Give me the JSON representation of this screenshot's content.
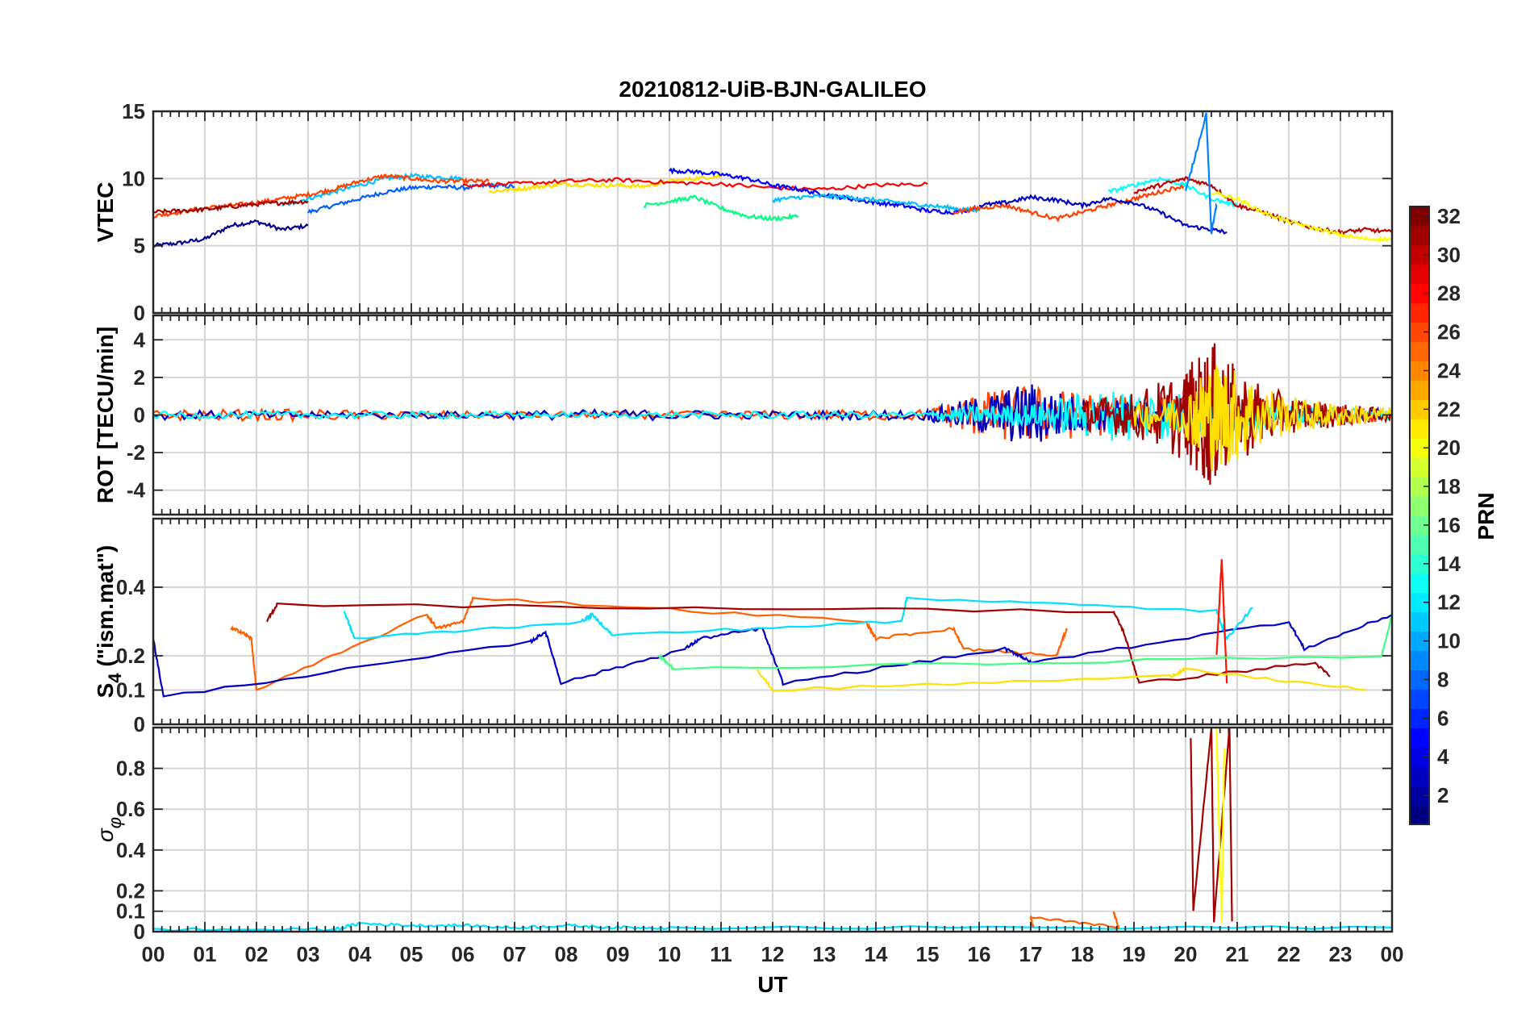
{
  "chart_data": {
    "type": "line",
    "title": "20210812-UiB-BJN-GALILEO",
    "xlabel": "UT",
    "x_ticks": [
      "00",
      "01",
      "02",
      "03",
      "04",
      "05",
      "06",
      "07",
      "08",
      "09",
      "10",
      "11",
      "12",
      "13",
      "14",
      "15",
      "16",
      "17",
      "18",
      "19",
      "20",
      "21",
      "22",
      "23",
      "00"
    ],
    "xlim_hours": [
      0,
      24
    ],
    "grid": true,
    "panels": [
      {
        "ylabel": "VTEC",
        "ylim": [
          0,
          15
        ],
        "yticks": [
          "0",
          "5",
          "10",
          "15"
        ],
        "series": [
          {
            "color": "#00008f",
            "x": [
              0,
              0.5,
              1,
              1.5,
              2,
              2.5,
              3
            ],
            "y": [
              5,
              5.2,
              5.5,
              6.5,
              6.8,
              6.2,
              6.5
            ]
          },
          {
            "color": "#0060ff",
            "x": [
              3,
              3.5,
              4,
              4.5,
              5,
              5.5,
              6,
              6.5,
              7
            ],
            "y": [
              7.5,
              8,
              8.5,
              9,
              9.3,
              9.4,
              9.3,
              9.5,
              9.4
            ]
          },
          {
            "color": "#00c0ff",
            "x": [
              2.5,
              3,
              3.5,
              4,
              4.5,
              5,
              5.5,
              6
            ],
            "y": [
              8,
              8.5,
              9,
              9.5,
              10,
              10.2,
              10.1,
              10
            ]
          },
          {
            "color": "#ff4000",
            "x": [
              0,
              0.5,
              1,
              1.5,
              2,
              2.5,
              3,
              3.5,
              4,
              4.5,
              5,
              5.5,
              6,
              6.5
            ],
            "y": [
              7.2,
              7.5,
              7.8,
              8,
              8.2,
              8.5,
              8.8,
              9.2,
              9.8,
              10.2,
              10,
              9.8,
              9.8,
              9.8
            ]
          },
          {
            "color": "#a00000",
            "x": [
              0,
              0.5,
              1,
              1.5,
              2,
              2.5,
              3
            ],
            "y": [
              7.5,
              7.6,
              7.7,
              7.9,
              8.1,
              8.2,
              8.3
            ]
          },
          {
            "color": "#ffe000",
            "x": [
              6.5,
              7,
              7.5,
              8,
              8.5,
              9,
              9.5,
              10,
              10.5,
              11
            ],
            "y": [
              9,
              9.2,
              9.4,
              9.6,
              9.5,
              9.5,
              9.4,
              9.8,
              10,
              10.2
            ]
          },
          {
            "color": "#ff0000",
            "x": [
              6,
              7,
              8,
              9,
              10,
              11,
              12,
              13,
              14,
              15
            ],
            "y": [
              9.5,
              9.6,
              9.8,
              9.9,
              9.7,
              9.6,
              9.3,
              9.2,
              9.5,
              9.6
            ]
          },
          {
            "color": "#0000ff",
            "x": [
              10,
              10.5,
              11,
              11.5,
              12,
              12.5,
              13,
              13.5,
              14,
              14.5,
              15,
              15.5,
              16
            ],
            "y": [
              10.6,
              10.5,
              10.3,
              10,
              9.5,
              9.2,
              8.8,
              8.5,
              8.2,
              8,
              7.6,
              7.5,
              7.8
            ]
          },
          {
            "color": "#00ff80",
            "x": [
              9.5,
              10,
              10.5,
              11,
              11.5,
              12,
              12.5
            ],
            "y": [
              8,
              8.3,
              8.6,
              7.8,
              7.2,
              7,
              7.2
            ]
          },
          {
            "color": "#00c0ff",
            "x": [
              12,
              12.5,
              13,
              13.5,
              14,
              14.5,
              15,
              15.5,
              16
            ],
            "y": [
              8.4,
              8.6,
              8.7,
              8.6,
              8.4,
              8.2,
              8,
              7.8,
              7.6
            ]
          },
          {
            "color": "#ff4000",
            "x": [
              15.5,
              16,
              16.5,
              17,
              17.5,
              18,
              18.5,
              19,
              19.5,
              20
            ],
            "y": [
              7.5,
              7.8,
              8,
              7.5,
              7,
              7.5,
              8,
              8.5,
              9,
              9.5
            ]
          },
          {
            "color": "#0000c0",
            "x": [
              16,
              16.5,
              17,
              17.5,
              18,
              18.5,
              19,
              19.5,
              20,
              20.5,
              20.8
            ],
            "y": [
              8,
              8.2,
              8.6,
              8.4,
              8,
              8.5,
              8.2,
              7.5,
              6.5,
              6.2,
              6
            ]
          },
          {
            "color": "#00ffff",
            "x": [
              18.5,
              19,
              19.5,
              20,
              20.5,
              21
            ],
            "y": [
              9,
              9.5,
              10,
              9.5,
              8.5,
              8
            ]
          },
          {
            "color": "#c00000",
            "x": [
              19,
              19.5,
              20,
              20.5,
              21,
              21.5,
              22,
              22.5,
              23,
              23.5,
              24
            ],
            "y": [
              9,
              9.5,
              10,
              9.5,
              8,
              7.5,
              6.8,
              6.3,
              6,
              6.2,
              6
            ]
          },
          {
            "color": "#ffff00",
            "x": [
              20.5,
              21,
              21.5,
              22,
              22.5,
              23,
              23.5,
              24
            ],
            "y": [
              9,
              8.5,
              7.5,
              6.8,
              6.3,
              5.8,
              5.5,
              5.5
            ]
          },
          {
            "color": "#0080ff",
            "x": [
              20,
              20.4,
              20.5,
              20.6
            ],
            "y": [
              9,
              14.8,
              6,
              8
            ]
          }
        ]
      },
      {
        "ylabel": "ROT [TECU/min]",
        "ylim": [
          -5.3,
          5.3
        ],
        "yticks": [
          "-4",
          "-2",
          "0",
          "2",
          "4"
        ],
        "series": [
          {
            "color": "#ff4000",
            "x": [
              0,
              3,
              6,
              9,
              12,
              15,
              16,
              17,
              18,
              19,
              20,
              21,
              22,
              23,
              24
            ],
            "amplitude": [
              0.3,
              0.3,
              0.2,
              0.2,
              0.25,
              0.3,
              1.2,
              1.6,
              1.2,
              1,
              1,
              1,
              0.7,
              0.5,
              0.3
            ]
          },
          {
            "color": "#0000c0",
            "x": [
              0,
              3,
              6,
              9,
              12,
              15,
              16,
              17,
              18,
              19,
              20,
              21,
              22,
              23,
              24
            ],
            "amplitude": [
              0.25,
              0.2,
              0.2,
              0.3,
              0.2,
              0.3,
              1,
              1.8,
              0.9,
              0.8,
              0.6,
              0.5,
              0.4,
              0.3,
              0.3
            ]
          },
          {
            "color": "#00ffff",
            "x": [
              0,
              3,
              6,
              9,
              12,
              15,
              16,
              17,
              18,
              19,
              20,
              21,
              22,
              23,
              24
            ],
            "amplitude": [
              0.2,
              0.2,
              0.2,
              0.15,
              0.2,
              0.2,
              0.5,
              0.6,
              1.2,
              1.5,
              1.2,
              0.9,
              0.5,
              0.4,
              0.3
            ]
          },
          {
            "color": "#a00000",
            "x": [
              18,
              19,
              20,
              20.5,
              21,
              22,
              23,
              24
            ],
            "amplitude": [
              0.8,
              1.2,
              2.5,
              4,
              2.5,
              1,
              0.6,
              0.3
            ]
          },
          {
            "color": "#ffe000",
            "x": [
              19,
              20,
              20.5,
              21,
              22,
              23,
              24
            ],
            "amplitude": [
              0.6,
              1.2,
              3,
              2.5,
              1,
              0.6,
              0.4
            ]
          }
        ]
      },
      {
        "ylabel": "S4 (\"ism.mat\")",
        "ylabel_main": "S",
        "ylabel_sub": "4",
        "ylabel_rest": " (\"ism.mat\")",
        "ylim": [
          0,
          0.6
        ],
        "yticks": [
          "0",
          "0.1",
          "0.2",
          "0.4"
        ],
        "series": [
          {
            "color": "#ff6000",
            "x": [
              1.5,
              1.7,
              1.9,
              2,
              5.3,
              5.5,
              6,
              6.2,
              13.8,
              14,
              15.5,
              15.7,
              17.5,
              17.7
            ],
            "y": [
              0.28,
              0.27,
              0.25,
              0.1,
              0.32,
              0.28,
              0.3,
              0.37,
              0.3,
              0.25,
              0.28,
              0.22,
              0.2,
              0.28
            ]
          },
          {
            "color": "#0000c0",
            "x": [
              0,
              0.2,
              7.3,
              7.6,
              7.9,
              10.3,
              10.6,
              11.8,
              12.2,
              16.5,
              16.8,
              17,
              22,
              22.3,
              24
            ],
            "y": [
              0.25,
              0.08,
              0.24,
              0.27,
              0.12,
              0.22,
              0.25,
              0.28,
              0.12,
              0.22,
              0.2,
              0.18,
              0.3,
              0.22,
              0.32
            ]
          },
          {
            "color": "#00e0ff",
            "x": [
              3.7,
              3.9,
              8.3,
              8.5,
              8.9,
              14.5,
              14.6,
              20.6,
              20.8,
              21.3
            ],
            "y": [
              0.33,
              0.25,
              0.3,
              0.32,
              0.26,
              0.3,
              0.37,
              0.33,
              0.25,
              0.34
            ]
          },
          {
            "color": "#a00000",
            "x": [
              2.2,
              2.4,
              18.6,
              18.8,
              19.1,
              22.5,
              22.8
            ],
            "y": [
              0.3,
              0.35,
              0.33,
              0.27,
              0.12,
              0.18,
              0.14
            ]
          },
          {
            "color": "#ff1000",
            "x": [
              20.6,
              20.7,
              20.8
            ],
            "y": [
              0.2,
              0.48,
              0.12
            ]
          },
          {
            "color": "#ffe000",
            "x": [
              11.7,
              12,
              19.7,
              20,
              23.5
            ],
            "y": [
              0.16,
              0.1,
              0.14,
              0.16,
              0.1
            ]
          },
          {
            "color": "#40ff80",
            "x": [
              9.8,
              10.1,
              23.8,
              24
            ],
            "y": [
              0.2,
              0.16,
              0.2,
              0.32
            ]
          }
        ]
      },
      {
        "ylabel": "σ φ",
        "ylabel_main": "σ",
        "ylabel_sub": "φ",
        "ylim": [
          0,
          1
        ],
        "yticks": [
          "0",
          "0.1",
          "0.2",
          "0.4",
          "0.6",
          "0.8"
        ],
        "series": [
          {
            "color": "#00e0ff",
            "x": [
              0,
              3.5,
              4,
              5,
              6,
              7,
              8,
              9,
              10,
              24
            ],
            "y": [
              0.01,
              0.01,
              0.04,
              0.03,
              0.03,
              0.02,
              0.03,
              0.02,
              0.02,
              0.02
            ]
          },
          {
            "color": "#a00000",
            "x": [
              20.1,
              20.15,
              20.5,
              20.55,
              20.85,
              20.9
            ],
            "y": [
              0.95,
              0.1,
              1,
              0.05,
              1,
              0.05
            ]
          },
          {
            "color": "#ffff00",
            "x": [
              20.6,
              20.7,
              20.75
            ],
            "y": [
              1,
              0.05,
              0.9
            ]
          },
          {
            "color": "#ff6000",
            "x": [
              18.6,
              18.7,
              17,
              17.05
            ],
            "y": [
              0.1,
              0.02,
              0.07,
              0.02
            ]
          }
        ]
      }
    ],
    "colorbar": {
      "label": "PRN",
      "range": [
        1,
        32
      ],
      "ticks": [
        "2",
        "4",
        "6",
        "8",
        "10",
        "12",
        "14",
        "16",
        "18",
        "20",
        "22",
        "24",
        "26",
        "28",
        "30",
        "32"
      ],
      "colormap": "jet"
    }
  }
}
